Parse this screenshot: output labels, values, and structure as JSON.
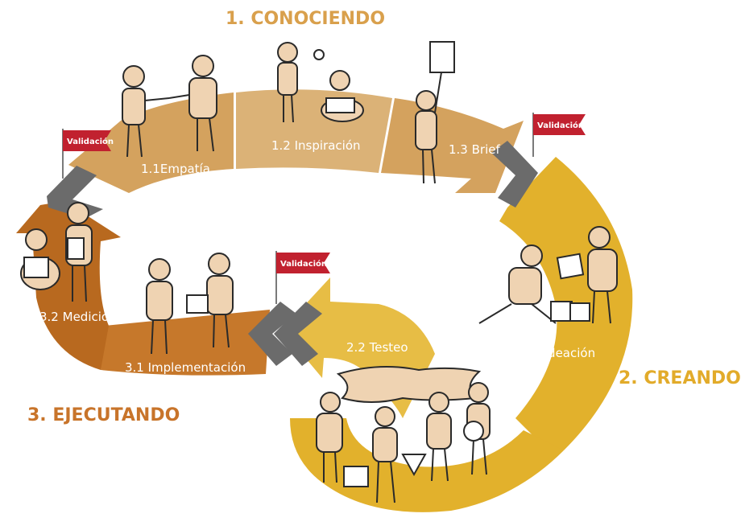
{
  "colors": {
    "conociendo": "#d4a25e",
    "conociendo_light": "#dbb277",
    "creando": "#e2b12c",
    "creando_light": "#e7bd45",
    "ejecutando": "#c6782b",
    "ejecutando_dark": "#b8691f",
    "chevron": "#6b6b6b",
    "flag": "#c1212f",
    "phase1_text": "#d9a04c",
    "phase2_text": "#e2ab2a",
    "phase3_text": "#c8742a"
  },
  "phases": {
    "conociendo": "1. CONOCIENDO",
    "creando": "2. CREANDO",
    "ejecutando": "3. EJECUTANDO"
  },
  "steps": {
    "empatia": "1.1Empatía",
    "inspiracion": "1.2 Inspiración",
    "brief": "1.3 Brief",
    "ideacion": "2.1 Ideación",
    "testeo": "2.2 Testeo",
    "implementacion": "3.1 Implementación",
    "medicion": "3.2 Medición"
  },
  "flags": {
    "flag1": "Validación",
    "flag2": "Validación",
    "flag3": "Validación"
  }
}
